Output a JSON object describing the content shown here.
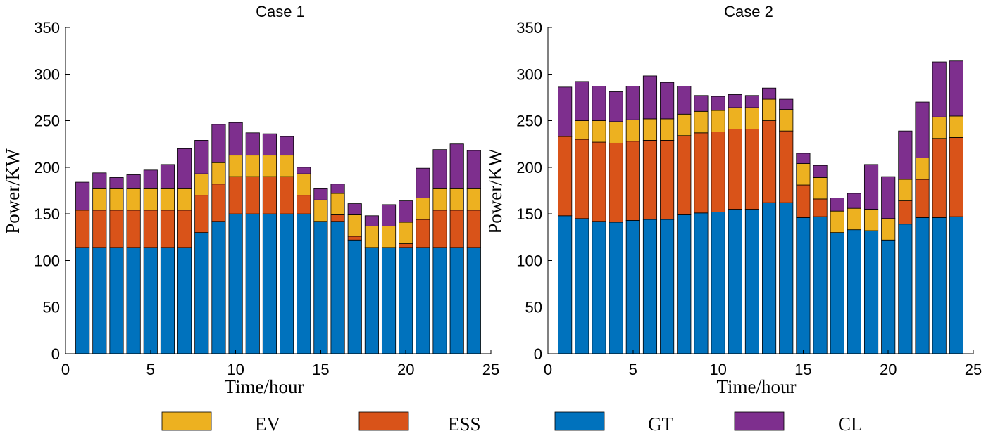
{
  "legend": [
    {
      "key": "EV",
      "label": "EV",
      "color": "#EDB120"
    },
    {
      "key": "ESS",
      "label": "ESS",
      "color": "#D95319"
    },
    {
      "key": "GT",
      "label": "GT",
      "color": "#0072BD"
    },
    {
      "key": "CL",
      "label": "CL",
      "color": "#7E2F8E"
    }
  ],
  "chart_data": [
    {
      "type": "bar",
      "stacked": true,
      "title": "Case 1",
      "xlabel": "Time/hour",
      "ylabel": "Power/KW",
      "xlim": [
        0,
        25
      ],
      "ylim": [
        0,
        350
      ],
      "xticks": [
        0,
        5,
        10,
        15,
        20,
        25
      ],
      "yticks": [
        0,
        50,
        100,
        150,
        200,
        250,
        300,
        350
      ],
      "x": [
        1,
        2,
        3,
        4,
        5,
        6,
        7,
        8,
        9,
        10,
        11,
        12,
        13,
        14,
        15,
        16,
        17,
        18,
        19,
        20,
        21,
        22,
        23,
        24
      ],
      "stack_order": [
        "GT",
        "ESS",
        "EV",
        "CL"
      ],
      "series": [
        {
          "name": "GT",
          "values": [
            114,
            114,
            114,
            114,
            114,
            114,
            114,
            130,
            142,
            150,
            150,
            150,
            150,
            150,
            142,
            142,
            122,
            114,
            114,
            114,
            114,
            114,
            114,
            114
          ]
        },
        {
          "name": "ESS",
          "values": [
            40,
            40,
            40,
            40,
            40,
            40,
            40,
            40,
            40,
            40,
            40,
            40,
            40,
            20,
            0,
            7,
            4,
            0,
            0,
            4,
            30,
            40,
            40,
            40
          ]
        },
        {
          "name": "EV",
          "values": [
            0,
            23,
            23,
            23,
            23,
            23,
            23,
            23,
            23,
            23,
            23,
            23,
            23,
            23,
            23,
            23,
            23,
            23,
            23,
            23,
            23,
            23,
            23,
            23
          ]
        },
        {
          "name": "CL",
          "values": [
            30,
            17,
            12,
            15,
            20,
            26,
            43,
            36,
            41,
            35,
            24,
            23,
            20,
            7,
            12,
            10,
            12,
            11,
            23,
            23,
            32,
            42,
            48,
            41
          ]
        }
      ]
    },
    {
      "type": "bar",
      "stacked": true,
      "title": "Case 2",
      "xlabel": "Time/hour",
      "ylabel": "Power/KW",
      "xlim": [
        0,
        25
      ],
      "ylim": [
        0,
        350
      ],
      "xticks": [
        0,
        5,
        10,
        15,
        20,
        25
      ],
      "yticks": [
        0,
        50,
        100,
        150,
        200,
        250,
        300,
        350
      ],
      "x": [
        1,
        2,
        3,
        4,
        5,
        6,
        7,
        8,
        9,
        10,
        11,
        12,
        13,
        14,
        15,
        16,
        17,
        18,
        19,
        20,
        21,
        22,
        23,
        24
      ],
      "stack_order": [
        "GT",
        "ESS",
        "EV",
        "CL"
      ],
      "series": [
        {
          "name": "GT",
          "values": [
            148,
            145,
            142,
            141,
            143,
            144,
            144,
            149,
            151,
            152,
            155,
            155,
            162,
            162,
            146,
            147,
            130,
            133,
            132,
            122,
            139,
            146,
            146,
            147
          ]
        },
        {
          "name": "ESS",
          "values": [
            85,
            85,
            85,
            85,
            85,
            85,
            85,
            85,
            86,
            86,
            86,
            86,
            88,
            77,
            35,
            19,
            0,
            0,
            0,
            0,
            25,
            41,
            85,
            85
          ]
        },
        {
          "name": "EV",
          "values": [
            0,
            20,
            23,
            23,
            23,
            23,
            23,
            23,
            23,
            23,
            23,
            23,
            23,
            23,
            23,
            23,
            23,
            23,
            23,
            23,
            23,
            23,
            23,
            23
          ]
        },
        {
          "name": "CL",
          "values": [
            53,
            42,
            37,
            32,
            36,
            46,
            39,
            30,
            17,
            15,
            14,
            13,
            12,
            11,
            11,
            13,
            14,
            16,
            48,
            45,
            52,
            60,
            59,
            59
          ]
        }
      ]
    }
  ]
}
